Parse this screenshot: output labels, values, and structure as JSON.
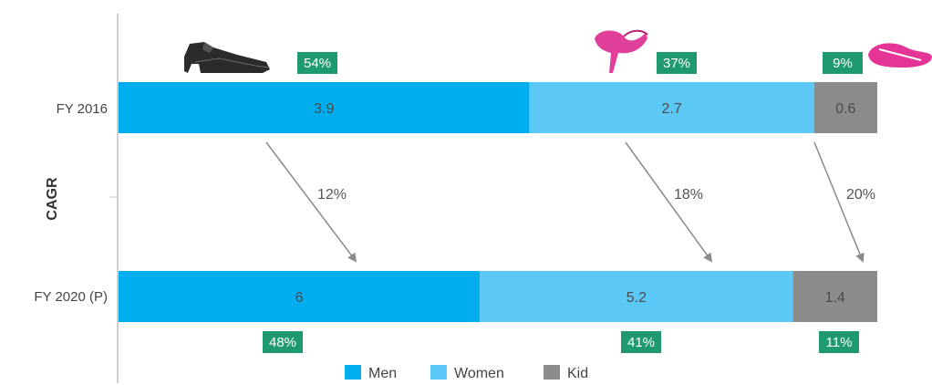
{
  "chart_data": {
    "type": "bar",
    "orientation": "horizontal",
    "stacked": true,
    "categories": [
      "FY 2016",
      "FY 2020 (P)"
    ],
    "series": [
      {
        "name": "Men",
        "values": [
          3.9,
          6
        ],
        "shares": [
          "54%",
          "48%"
        ],
        "cagr": "12%"
      },
      {
        "name": "Women",
        "values": [
          2.7,
          5.2
        ],
        "shares": [
          "37%",
          "41%"
        ],
        "cagr": "18%"
      },
      {
        "name": "Kid",
        "values": [
          0.6,
          1.4
        ],
        "shares": [
          "9%",
          "11%"
        ],
        "cagr": "20%"
      }
    ],
    "value_labels": [
      [
        "3.9",
        "2.7",
        "0.6"
      ],
      [
        "6",
        "5.2",
        "1.4"
      ]
    ],
    "ylabel": "CAGR",
    "legend": {
      "position": "bottom",
      "items": [
        "Men",
        "Women",
        "Kid"
      ]
    },
    "colors": {
      "Men": "#00aeef",
      "Women": "#5bc8f5",
      "Kid": "#8c8c8c",
      "badge": "#1f9a6e"
    },
    "icons": [
      "men-shoe-icon",
      "women-heel-icon",
      "kid-shoe-icon"
    ],
    "grid": false
  }
}
